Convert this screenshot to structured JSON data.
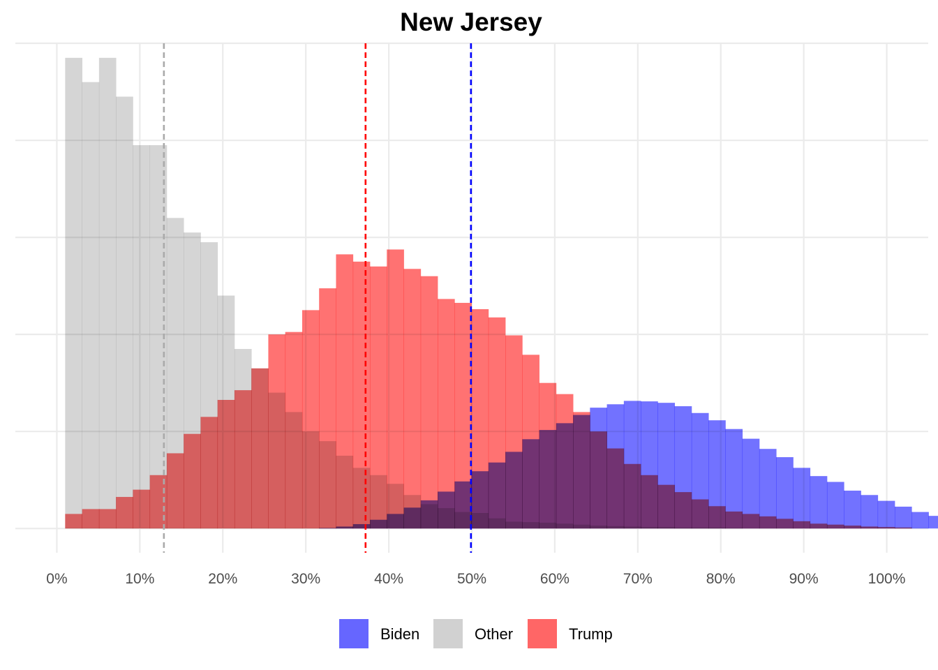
{
  "chart_data": {
    "type": "histogram",
    "title": "New Jersey",
    "xlabel": "",
    "ylabel": "",
    "xlim": [
      -0.05,
      1.05
    ],
    "ylim": [
      -0.05,
      1.0
    ],
    "x_ticks": [
      0,
      0.1,
      0.2,
      0.3,
      0.4,
      0.5,
      0.6,
      0.7,
      0.8,
      0.9,
      1.0
    ],
    "x_tick_labels": [
      "0%",
      "10%",
      "20%",
      "30%",
      "40%",
      "50%",
      "60%",
      "70%",
      "80%",
      "90%",
      "100%"
    ],
    "y_gridlines": [
      0,
      0.2,
      0.4,
      0.6,
      0.8,
      1.0
    ],
    "grid": true,
    "bin_width": 0.0204,
    "bin_start": 0.01,
    "legend": {
      "position": "bottom"
    },
    "series": [
      {
        "name": "Biden",
        "color": "#6666ff",
        "mean": 0.499,
        "mean_line_color": "#0000ff",
        "values": [
          0,
          0,
          0,
          0,
          0,
          0,
          0,
          0,
          0,
          0,
          0,
          0,
          0,
          0,
          0,
          0.001,
          0.004,
          0.009,
          0.018,
          0.03,
          0.043,
          0.058,
          0.076,
          0.097,
          0.118,
          0.136,
          0.158,
          0.184,
          0.203,
          0.217,
          0.234,
          0.249,
          0.256,
          0.263,
          0.262,
          0.259,
          0.252,
          0.238,
          0.223,
          0.205,
          0.185,
          0.164,
          0.147,
          0.125,
          0.108,
          0.096,
          0.078,
          0.069,
          0.057,
          0.045,
          0.034,
          0.026,
          0.019,
          0.015,
          0.011,
          0.008,
          0.005,
          0.004,
          0.003,
          0.002
        ]
      },
      {
        "name": "Other",
        "color": "#d1d1d1",
        "mean": 0.129,
        "mean_line_color": "#aaaaaa",
        "values": [
          0.97,
          0.92,
          0.97,
          0.89,
          0.79,
          0.79,
          0.64,
          0.61,
          0.59,
          0.48,
          0.37,
          0.33,
          0.28,
          0.24,
          0.2,
          0.18,
          0.15,
          0.125,
          0.11,
          0.092,
          0.069,
          0.05,
          0.042,
          0.034,
          0.032,
          0.021,
          0.014,
          0.013,
          0.012,
          0.01,
          0.008,
          0.006,
          0.005,
          0.004,
          0.003,
          0.003,
          0.002,
          0.002,
          0.002,
          0.001
        ]
      },
      {
        "name": "Trump",
        "color": "#ff6666",
        "mean": 0.372,
        "mean_line_color": "#ff0000",
        "values": [
          0.03,
          0.04,
          0.04,
          0.065,
          0.08,
          0.11,
          0.155,
          0.195,
          0.23,
          0.265,
          0.285,
          0.33,
          0.4,
          0.405,
          0.45,
          0.495,
          0.565,
          0.55,
          0.54,
          0.575,
          0.535,
          0.52,
          0.473,
          0.465,
          0.452,
          0.435,
          0.398,
          0.358,
          0.3,
          0.277,
          0.24,
          0.2,
          0.165,
          0.133,
          0.11,
          0.09,
          0.075,
          0.06,
          0.046,
          0.035,
          0.03,
          0.025,
          0.02,
          0.015,
          0.01,
          0.008,
          0.006,
          0.004,
          0.003,
          0.002
        ]
      }
    ]
  }
}
